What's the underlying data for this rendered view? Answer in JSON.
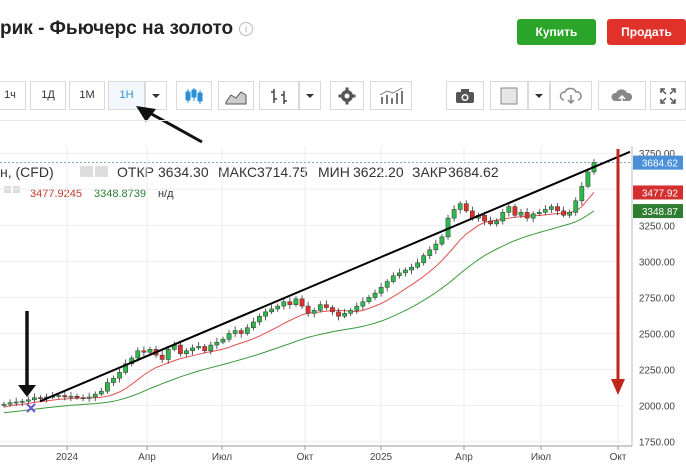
{
  "header": {
    "title": "рик - Фьючерс на золото",
    "buy_label": "Купить",
    "sell_label": "Продать"
  },
  "toolbar": {
    "timeframes": [
      "1ч",
      "1Д",
      "1М",
      "1Н"
    ],
    "active_timeframe": "1Н",
    "icons": [
      "chevron-down-icon",
      "candlestick-icon",
      "area-chart-icon",
      "bar-chart-icon",
      "chevron-down-icon",
      "gear-icon",
      "indicators-icon",
      "camera-icon",
      "color-box-icon",
      "chevron-down-icon",
      "cloud-download-icon",
      "cloud-upload-icon",
      "fullscreen-icon"
    ]
  },
  "legend": {
    "symbol": "н, (CFD)",
    "open_label": "ОТКР",
    "open": "3634.30",
    "high_label": "МАКС",
    "high": "3714.75",
    "low_label": "МИН",
    "low": "3622.20",
    "close_label": "ЗАКР",
    "close": "3684.62",
    "ma_fast": "3477.9245",
    "ma_slow": "3348.8739",
    "na": "н/д"
  },
  "chart_data": {
    "type": "candlestick",
    "x_tick_labels": [
      "2024",
      "Апр",
      "Июл",
      "Окт",
      "2025",
      "Апр",
      "Июл",
      "Окт"
    ],
    "y_ticks": [
      1750,
      2000,
      2250,
      2500,
      2750,
      3000,
      3250,
      3500,
      3750
    ],
    "y_tick_labels": [
      "1750.00",
      "2000.00",
      "2250.00",
      "2500.00",
      "2750.00",
      "3000.00",
      "3250.00",
      "3500.00",
      "3750.00"
    ],
    "ylim": [
      1720,
      3800
    ],
    "price_labels": {
      "close": "3684.62",
      "ma_fast": "3477.92",
      "ma_slow": "3348.87"
    },
    "colors": {
      "up": "#2db84d",
      "down": "#e0322b",
      "ma_fast": "#e15050",
      "ma_slow": "#3a9a3a",
      "close_tag": "#4a90d9",
      "annotation_arrow": "#c0261c"
    },
    "series": [
      {
        "name": "close",
        "values": [
          2010,
          2020,
          2025,
          2030,
          2040,
          2055,
          2050,
          2060,
          2065,
          2070,
          2060,
          2065,
          2055,
          2050,
          2060,
          2080,
          2100,
          2160,
          2190,
          2230,
          2290,
          2330,
          2380,
          2370,
          2390,
          2350,
          2320,
          2390,
          2420,
          2360,
          2380,
          2400,
          2410,
          2380,
          2420,
          2440,
          2460,
          2500,
          2520,
          2500,
          2540,
          2580,
          2620,
          2650,
          2670,
          2690,
          2720,
          2700,
          2740,
          2690,
          2640,
          2660,
          2700,
          2680,
          2650,
          2620,
          2640,
          2660,
          2690,
          2720,
          2750,
          2780,
          2820,
          2860,
          2900,
          2920,
          2940,
          2960,
          2990,
          3040,
          3080,
          3120,
          3170,
          3300,
          3360,
          3400,
          3350,
          3300,
          3320,
          3280,
          3260,
          3280,
          3340,
          3380,
          3320,
          3340,
          3300,
          3330,
          3340,
          3360,
          3380,
          3350,
          3320,
          3340,
          3420,
          3520,
          3620,
          3685
        ]
      },
      {
        "name": "ma_fast",
        "values": [
          1990,
          2000,
          2005,
          2010,
          2015,
          2022,
          2028,
          2033,
          2038,
          2043,
          2046,
          2049,
          2051,
          2052,
          2053,
          2055,
          2058,
          2065,
          2078,
          2095,
          2118,
          2148,
          2180,
          2212,
          2240,
          2264,
          2280,
          2296,
          2312,
          2326,
          2336,
          2346,
          2356,
          2366,
          2374,
          2382,
          2392,
          2404,
          2420,
          2434,
          2448,
          2464,
          2482,
          2503,
          2524,
          2546,
          2570,
          2590,
          2610,
          2630,
          2640,
          2645,
          2650,
          2654,
          2660,
          2660,
          2658,
          2655,
          2652,
          2660,
          2674,
          2690,
          2708,
          2730,
          2756,
          2782,
          2810,
          2838,
          2866,
          2896,
          2930,
          2966,
          3006,
          3052,
          3100,
          3150,
          3190,
          3220,
          3250,
          3270,
          3280,
          3286,
          3292,
          3300,
          3306,
          3310,
          3314,
          3316,
          3318,
          3322,
          3328,
          3332,
          3334,
          3338,
          3350,
          3380,
          3430,
          3478
        ]
      },
      {
        "name": "ma_slow",
        "values": [
          1950,
          1955,
          1960,
          1965,
          1970,
          1975,
          1980,
          1985,
          1990,
          1994,
          1998,
          2002,
          2005,
          2008,
          2011,
          2014,
          2018,
          2023,
          2030,
          2040,
          2052,
          2066,
          2082,
          2100,
          2118,
          2135,
          2152,
          2168,
          2184,
          2200,
          2214,
          2227,
          2240,
          2252,
          2263,
          2274,
          2285,
          2296,
          2308,
          2320,
          2332,
          2345,
          2358,
          2372,
          2386,
          2400,
          2416,
          2430,
          2445,
          2460,
          2473,
          2484,
          2494,
          2503,
          2512,
          2520,
          2527,
          2534,
          2541,
          2550,
          2560,
          2572,
          2586,
          2602,
          2620,
          2640,
          2660,
          2682,
          2705,
          2730,
          2756,
          2784,
          2814,
          2846,
          2880,
          2916,
          2950,
          2982,
          3012,
          3040,
          3064,
          3086,
          3106,
          3126,
          3144,
          3160,
          3175,
          3188,
          3200,
          3212,
          3224,
          3236,
          3248,
          3260,
          3275,
          3295,
          3322,
          3349
        ]
      }
    ]
  }
}
